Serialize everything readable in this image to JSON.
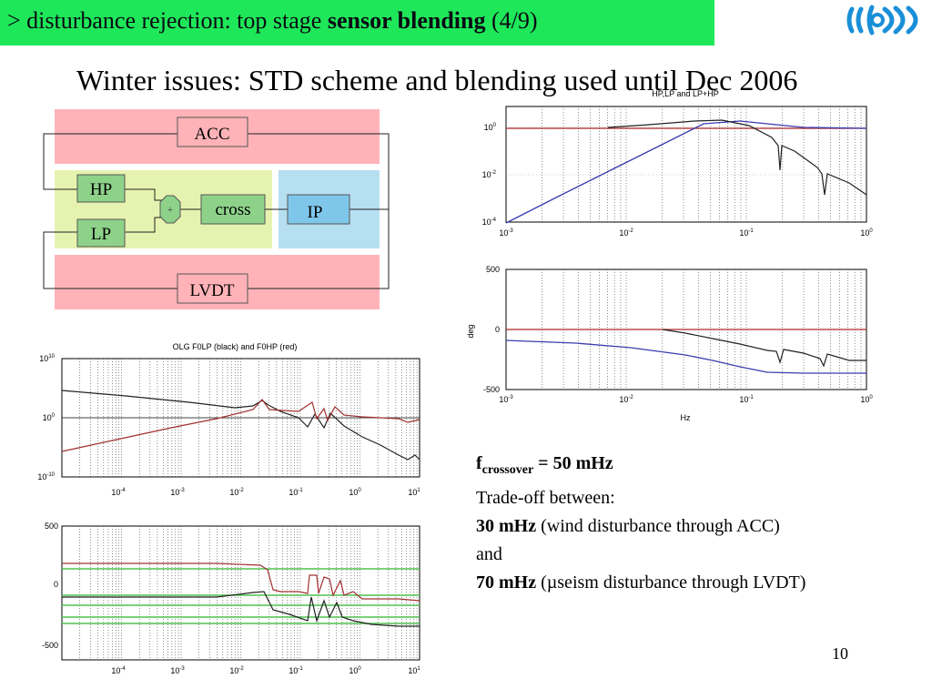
{
  "header": {
    "prefix": "> disturbance rejection: top stage ",
    "bold": "sensor blending",
    "suffix": " (4/9)"
  },
  "subtitle": "Winter issues: STD scheme and blending used until Dec 2006",
  "diagram": {
    "acc": "ACC",
    "hp": "HP",
    "lp": "LP",
    "sum": "+",
    "cross": "cross",
    "ip": "IP",
    "lvdt": "LVDT"
  },
  "plots": {
    "tr_mag": {
      "title": "HP,LP and LP+HP",
      "yticks": [
        "10^0",
        "10^-2",
        "10^-4"
      ],
      "xticks": [
        "10^-3",
        "10^-2",
        "10^-1",
        "10^0"
      ]
    },
    "tr_phase": {
      "yticks": [
        "500",
        "0",
        "-500"
      ],
      "xticks": [
        "10^-3",
        "10^-2",
        "10^-1",
        "10^0"
      ],
      "ylabel": "deg",
      "xlabel": "Hz"
    },
    "bl_mag": {
      "title": "OLG F0LP (black) and F0HP (red)",
      "yticks": [
        "10^10",
        "10^0",
        "10^-10"
      ],
      "xticks": [
        "10^-4",
        "10^-3",
        "10^-2",
        "10^-1",
        "10^0",
        "10^1"
      ]
    },
    "bl_phase": {
      "yticks": [
        "500",
        "0",
        "-500"
      ],
      "xticks": [
        "10^-4",
        "10^-3",
        "10^-2",
        "10^-1",
        "10^0",
        "10^1"
      ]
    }
  },
  "notes": {
    "f_label": "f",
    "f_sub": "crossover",
    "f_value": " = 50 mHz",
    "tradeoff": "Trade-off between:",
    "item1_bold": "30 mHz",
    "item1_text": " (wind disturbance through ACC)",
    "and": "and",
    "item2_bold": "70 mHz",
    "item2_text": " (µseism disturbance through LVDT)"
  },
  "page_number": "10",
  "colors": {
    "banner": "#1ee859",
    "pink": "#ffb3b8",
    "lightgreen": "#e6f3b0",
    "lightblue": "#b7dff2",
    "block": "#8ed28a",
    "ip": "#7fc7ea"
  }
}
